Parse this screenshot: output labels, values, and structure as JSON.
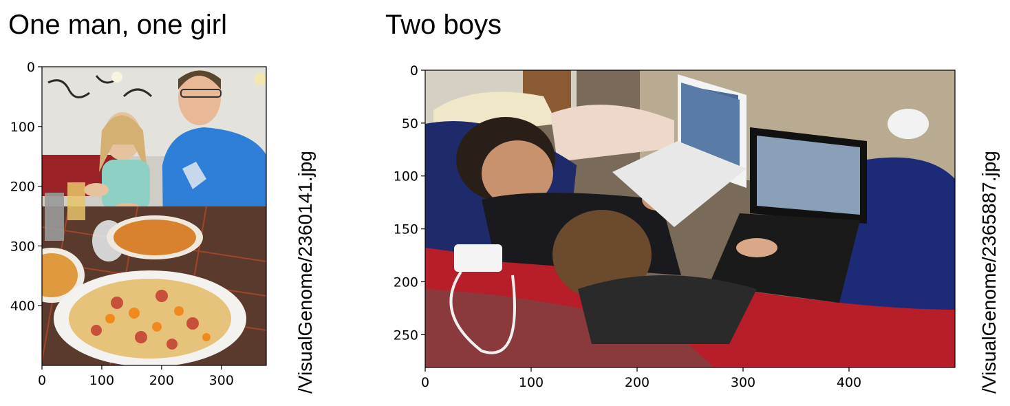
{
  "panels": [
    {
      "title": "One man, one girl",
      "image_label": "/VisualGenome/2360141.jpg",
      "x_ticks": [
        "0",
        "100",
        "200",
        "300"
      ],
      "y_ticks": [
        "0",
        "100",
        "200",
        "300",
        "400"
      ],
      "x_max": 375,
      "y_max": 500
    },
    {
      "title": "Two boys",
      "image_label": "/VisualGenome/2365887.jpg",
      "x_ticks": [
        "0",
        "100",
        "200",
        "300",
        "400"
      ],
      "y_ticks": [
        "0",
        "50",
        "100",
        "150",
        "200",
        "250"
      ],
      "x_max": 500,
      "y_max": 281
    }
  ]
}
